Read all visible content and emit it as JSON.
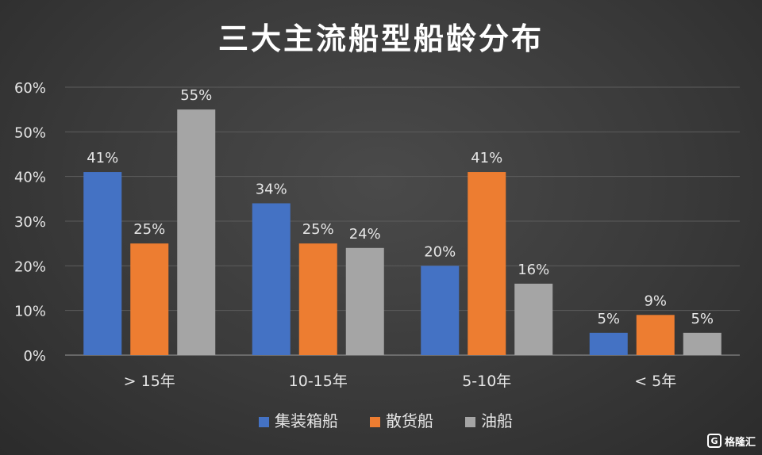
{
  "chart_data": {
    "type": "bar",
    "title": "三大主流船型船龄分布",
    "categories": [
      "> 15年",
      "10-15年",
      "5-10年",
      "< 5年"
    ],
    "series": [
      {
        "name": "集装箱船",
        "values": [
          41,
          34,
          20,
          5
        ],
        "value_labels": [
          "41%",
          "34%",
          "20%",
          "5%"
        ],
        "color": "#4472C4"
      },
      {
        "name": "散货船",
        "values": [
          25,
          25,
          41,
          9
        ],
        "value_labels": [
          "25%",
          "25%",
          "41%",
          "9%"
        ],
        "color": "#ED7D31"
      },
      {
        "name": "油船",
        "values": [
          55,
          24,
          16,
          5
        ],
        "value_labels": [
          "55%",
          "24%",
          "16%",
          "5%"
        ],
        "color": "#A5A5A5"
      }
    ],
    "ylim": [
      0,
      60
    ],
    "yticks": [
      0,
      10,
      20,
      30,
      40,
      50,
      60
    ],
    "ytick_labels": [
      "0%",
      "10%",
      "20%",
      "30%",
      "40%",
      "50%",
      "60%"
    ],
    "grid": true,
    "legend_position": "bottom",
    "xlabel": "",
    "ylabel": ""
  },
  "watermark": {
    "text": "格隆汇",
    "logo_letter": "G"
  }
}
